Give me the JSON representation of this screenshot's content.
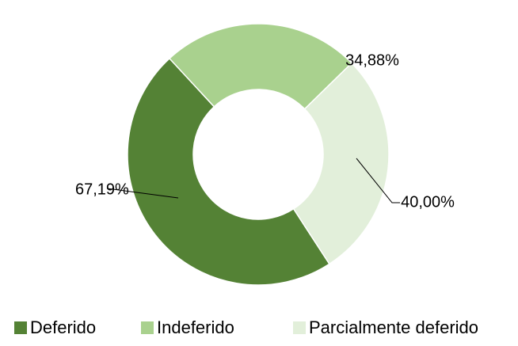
{
  "chart_data": {
    "type": "pie",
    "series": [
      {
        "name": "Deferido",
        "color": "#548235",
        "values": [
          67.19
        ],
        "value_labels": [
          "67,19%"
        ]
      },
      {
        "name": "Indeferido",
        "color": "#a9d18e",
        "values": [
          34.88
        ],
        "value_labels": [
          "34,88%"
        ]
      },
      {
        "name": "Parcialmente deferido",
        "color": "#e2efda",
        "values": [
          40.0
        ],
        "value_labels": [
          "40,00%"
        ]
      }
    ],
    "legend": "bottom"
  }
}
